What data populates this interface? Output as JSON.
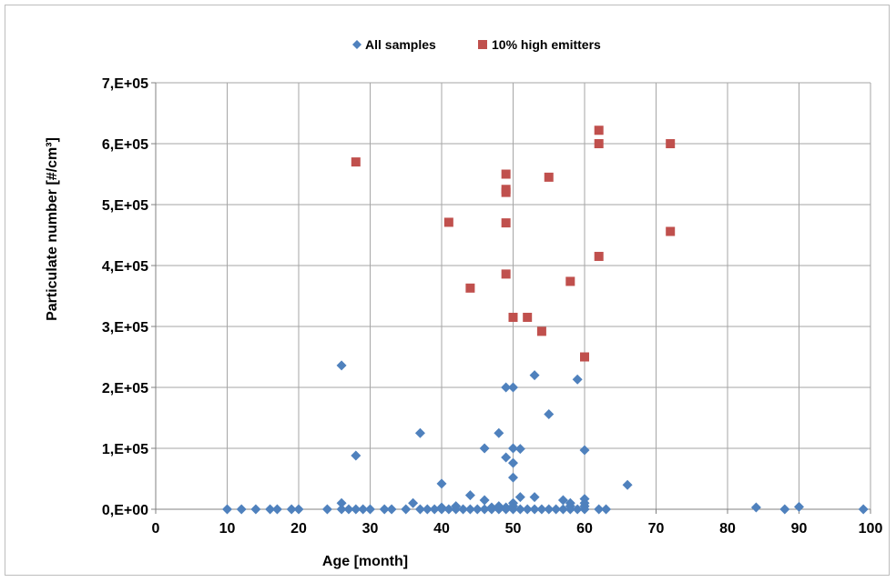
{
  "chart_data": {
    "type": "scatter",
    "title": "",
    "xlabel": "Age [month]",
    "ylabel": "Particulate number [#/cm³]",
    "xlim": [
      0,
      100
    ],
    "ylim": [
      0,
      700000
    ],
    "xticks": [
      0,
      10,
      20,
      30,
      40,
      50,
      60,
      70,
      80,
      90,
      100
    ],
    "xtick_labels": [
      "0",
      "10",
      "20",
      "30",
      "40",
      "50",
      "60",
      "70",
      "80",
      "90",
      "100"
    ],
    "yticks": [
      0,
      100000,
      200000,
      300000,
      400000,
      500000,
      600000,
      700000
    ],
    "ytick_labels": [
      "0,E+00",
      "1,E+05",
      "2,E+05",
      "3,E+05",
      "4,E+05",
      "5,E+05",
      "6,E+05",
      "7,E+05"
    ],
    "grid": true,
    "legend_position": "top-center",
    "series": [
      {
        "name": "All samples",
        "marker": "diamond",
        "color": "#4f81bd",
        "points": [
          [
            10,
            0
          ],
          [
            12,
            0
          ],
          [
            14,
            0
          ],
          [
            16,
            0
          ],
          [
            17,
            0
          ],
          [
            19,
            0
          ],
          [
            20,
            0
          ],
          [
            24,
            0
          ],
          [
            26,
            0
          ],
          [
            26,
            10000
          ],
          [
            26,
            236000
          ],
          [
            27,
            0
          ],
          [
            28,
            0
          ],
          [
            28,
            88000
          ],
          [
            29,
            0
          ],
          [
            30,
            0
          ],
          [
            32,
            0
          ],
          [
            33,
            0
          ],
          [
            35,
            0
          ],
          [
            36,
            10000
          ],
          [
            37,
            0
          ],
          [
            37,
            125000
          ],
          [
            38,
            0
          ],
          [
            39,
            0
          ],
          [
            40,
            0
          ],
          [
            40,
            3000
          ],
          [
            40,
            42000
          ],
          [
            41,
            0
          ],
          [
            42,
            0
          ],
          [
            42,
            5000
          ],
          [
            43,
            0
          ],
          [
            44,
            0
          ],
          [
            44,
            23000
          ],
          [
            45,
            0
          ],
          [
            46,
            0
          ],
          [
            46,
            15000
          ],
          [
            46,
            100000
          ],
          [
            47,
            0
          ],
          [
            47,
            3000
          ],
          [
            48,
            0
          ],
          [
            48,
            5000
          ],
          [
            48,
            125000
          ],
          [
            49,
            0
          ],
          [
            49,
            3000
          ],
          [
            49,
            85000
          ],
          [
            49,
            200000
          ],
          [
            50,
            0
          ],
          [
            50,
            5000
          ],
          [
            50,
            10000
          ],
          [
            50,
            52000
          ],
          [
            50,
            76000
          ],
          [
            50,
            100000
          ],
          [
            50,
            200000
          ],
          [
            51,
            0
          ],
          [
            51,
            20000
          ],
          [
            51,
            99000
          ],
          [
            52,
            0
          ],
          [
            53,
            0
          ],
          [
            53,
            20000
          ],
          [
            53,
            220000
          ],
          [
            54,
            0
          ],
          [
            55,
            0
          ],
          [
            55,
            156000
          ],
          [
            56,
            0
          ],
          [
            57,
            0
          ],
          [
            57,
            15000
          ],
          [
            58,
            0
          ],
          [
            58,
            5000
          ],
          [
            58,
            10000
          ],
          [
            59,
            0
          ],
          [
            59,
            213000
          ],
          [
            60,
            0
          ],
          [
            60,
            5000
          ],
          [
            60,
            10000
          ],
          [
            60,
            17000
          ],
          [
            60,
            97000
          ],
          [
            62,
            0
          ],
          [
            63,
            0
          ],
          [
            66,
            40000
          ],
          [
            84,
            3000
          ],
          [
            88,
            0
          ],
          [
            90,
            4000
          ],
          [
            99,
            0
          ]
        ]
      },
      {
        "name": "10% high emitters",
        "marker": "square",
        "color": "#c0504d",
        "points": [
          [
            28,
            570000
          ],
          [
            41,
            471000
          ],
          [
            44,
            363000
          ],
          [
            49,
            550000
          ],
          [
            49,
            525000
          ],
          [
            49,
            520000
          ],
          [
            49,
            470000
          ],
          [
            49,
            386000
          ],
          [
            50,
            315000
          ],
          [
            52,
            315000
          ],
          [
            54,
            292000
          ],
          [
            55,
            545000
          ],
          [
            58,
            374000
          ],
          [
            60,
            250000
          ],
          [
            62,
            622000
          ],
          [
            62,
            600000
          ],
          [
            62,
            415000
          ],
          [
            72,
            600000
          ],
          [
            72,
            456000
          ]
        ]
      }
    ]
  }
}
